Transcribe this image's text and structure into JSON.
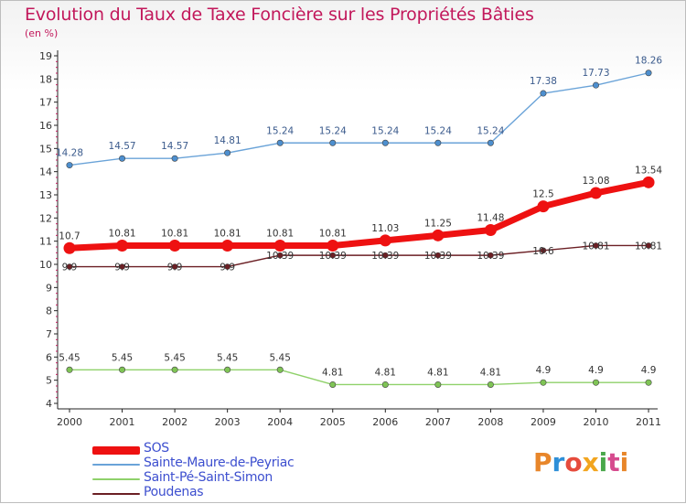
{
  "header": {
    "title": "Evolution du Taux de Taxe Foncière sur les Propriétés Bâties",
    "subtitle": "(en %)"
  },
  "logo": {
    "text": "Proxiti",
    "colors": [
      "#e8862a",
      "#2e8fd8",
      "#e64b3c",
      "#f2a51f",
      "#4aa84b",
      "#d64b8e",
      "#e8862a"
    ]
  },
  "chart_data": {
    "type": "line",
    "title": "Evolution du Taux de Taxe Foncière sur les Propriétés Bâties",
    "ylabel": "(en %)",
    "xlabel": "",
    "ylim": [
      4,
      19
    ],
    "grid": false,
    "legend_position": "bottom-left",
    "categories": [
      "2000",
      "2001",
      "2002",
      "2003",
      "2004",
      "2005",
      "2006",
      "2007",
      "2008",
      "2009",
      "2010",
      "2011"
    ],
    "yticks": [
      "4",
      "5",
      "6",
      "7",
      "8",
      "9",
      "10",
      "11",
      "12",
      "13",
      "14",
      "15",
      "16",
      "17",
      "18",
      "19"
    ],
    "series": [
      {
        "name": "SOS",
        "color": "#ee1111",
        "values": [
          10.7,
          10.81,
          10.81,
          10.81,
          10.81,
          10.81,
          11.03,
          11.25,
          11.48,
          12.5,
          13.08,
          13.54
        ],
        "labels": [
          "10.7",
          "10.81",
          "10.81",
          "10.81",
          "10.81",
          "10.81",
          "11.03",
          "11.25",
          "11.48",
          "12.5",
          "13.08",
          "13.54"
        ]
      },
      {
        "name": "Sainte-Maure-de-Peyriac",
        "color": "#6aa3d8",
        "values": [
          14.28,
          14.57,
          14.57,
          14.81,
          15.24,
          15.24,
          15.24,
          15.24,
          15.24,
          17.38,
          17.73,
          18.26
        ],
        "labels": [
          "14.28",
          "14.57",
          "14.57",
          "14.81",
          "15.24",
          "15.24",
          "15.24",
          "15.24",
          "15.24",
          "17.38",
          "17.73",
          "18.26"
        ]
      },
      {
        "name": "Saint-Pé-Saint-Simon",
        "color": "#8fd16a",
        "values": [
          5.45,
          5.45,
          5.45,
          5.45,
          5.45,
          4.81,
          4.81,
          4.81,
          4.81,
          4.9,
          4.9,
          4.9
        ],
        "labels": [
          "5.45",
          "5.45",
          "5.45",
          "5.45",
          "5.45",
          "4.81",
          "4.81",
          "4.81",
          "4.81",
          "4.9",
          "4.9",
          "4.9"
        ]
      },
      {
        "name": "Poudenas",
        "color": "#6b1f24",
        "values": [
          9.9,
          9.9,
          9.9,
          9.9,
          10.39,
          10.39,
          10.39,
          10.39,
          10.39,
          10.6,
          10.81,
          10.81
        ],
        "labels": [
          "9.9",
          "9.9",
          "9.9",
          "9.9",
          "10.39",
          "10.39",
          "10.39",
          "10.39",
          "10.39",
          "10.6",
          "10.81",
          "10.81"
        ]
      }
    ]
  }
}
